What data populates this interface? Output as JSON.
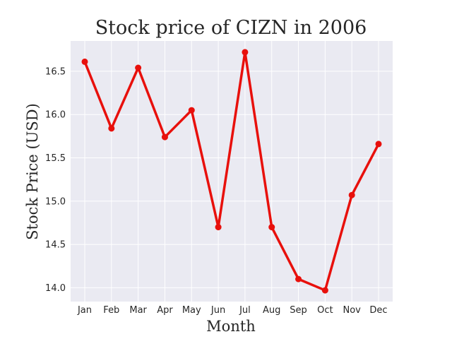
{
  "chart_data": {
    "type": "line",
    "title": "Stock price of CIZN in 2006",
    "xlabel": "Month",
    "ylabel": "Stock Price (USD)",
    "categories": [
      "Jan",
      "Feb",
      "Mar",
      "Apr",
      "May",
      "Jun",
      "Jul",
      "Aug",
      "Sep",
      "Oct",
      "Nov",
      "Dec"
    ],
    "series": [
      {
        "values": [
          16.61,
          15.84,
          16.54,
          15.74,
          16.05,
          14.7,
          16.72,
          14.7,
          14.1,
          13.97,
          15.07,
          15.66
        ]
      }
    ],
    "yticks": [
      14.0,
      14.5,
      15.0,
      15.5,
      16.0,
      16.5
    ],
    "ytick_labels": [
      "14.0",
      "14.5",
      "15.0",
      "15.5",
      "16.0",
      "16.5"
    ],
    "ylim": [
      13.84,
      16.85
    ],
    "grid": true,
    "colors": {
      "line": "#e8100c",
      "plot_background": "#eaeaf2",
      "grid": "#ffffff"
    }
  }
}
